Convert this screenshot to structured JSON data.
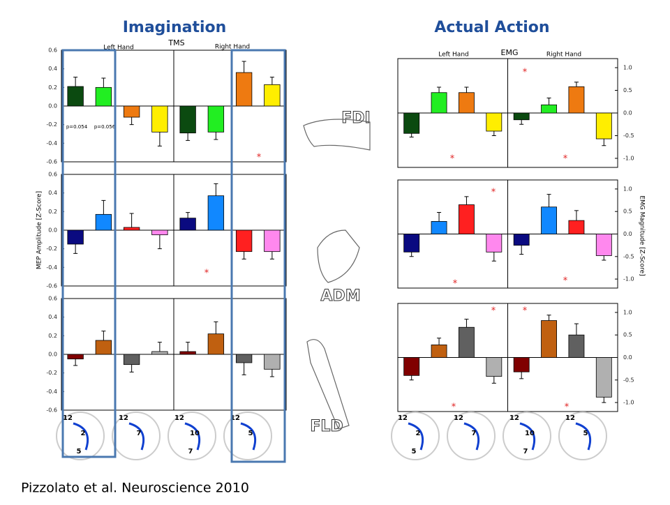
{
  "labels": {
    "left_title": "Imagination",
    "right_title": "Actual Action",
    "tms": "TMS",
    "emg": "EMG",
    "left_hand": "Left Hand",
    "right_hand": "Right Hand",
    "left_y_title": "MEP Amplitude [Z-Score]",
    "right_y_title": "EMG Magnitude [Z-Score]",
    "muscles": [
      "FDI",
      "ADM",
      "FLD"
    ],
    "citation": "Pizzolato et al. Neuroscience 2010"
  },
  "clocks": [
    [
      "12",
      "2",
      "5"
    ],
    [
      "12",
      "7"
    ],
    [
      "12",
      "10",
      "7"
    ],
    [
      "12",
      "5"
    ],
    [
      "12",
      "2",
      "5"
    ],
    [
      "12",
      "7"
    ],
    [
      "12",
      "10",
      "7"
    ],
    [
      "12",
      "5"
    ]
  ],
  "chart_data": [
    {
      "type": "bar",
      "values": [
        0.21,
        0.2,
        -0.12,
        -0.28,
        -0.29,
        -0.28,
        0.36,
        0.23
      ],
      "errors": [
        0.1,
        0.1,
        0.08,
        0.15,
        0.08,
        0.08,
        0.12,
        0.08
      ],
      "colors": [
        "#0b4a10",
        "#22ee22",
        "#ee7a11",
        "#ffee00",
        "#0b4a10",
        "#22ee22",
        "#ee7a11",
        "#ffee00"
      ],
      "ylim": [
        -0.6,
        0.6
      ],
      "yticks": [
        -0.6,
        -0.4,
        -0.2,
        {
          "value": 0,
          "label": "0.0"
        },
        0.2,
        0.4,
        0.6
      ],
      "annotations": [
        "p=0.054",
        "p=0.056",
        "*"
      ]
    },
    {
      "type": "bar",
      "values": [
        -0.15,
        0.17,
        0.03,
        -0.05,
        0.13,
        0.37,
        -0.23,
        -0.23
      ],
      "errors": [
        0.1,
        0.15,
        0.15,
        0.15,
        0.06,
        0.13,
        0.08,
        0.08
      ],
      "colors": [
        "#0a0a80",
        "#1188ff",
        "#ff2020",
        "#ff88ee",
        "#0a0a80",
        "#1188ff",
        "#ff2020",
        "#ff88ee"
      ],
      "ylim": [
        -0.6,
        0.6
      ],
      "yticks": [
        -0.6,
        -0.4,
        -0.2,
        {
          "value": 0,
          "label": "0.0"
        },
        0.2,
        0.4,
        0.6
      ],
      "annotations": [
        "*"
      ]
    },
    {
      "type": "bar",
      "values": [
        -0.05,
        0.15,
        -0.11,
        0.03,
        0.03,
        0.22,
        -0.09,
        -0.16
      ],
      "errors": [
        0.07,
        0.1,
        0.08,
        0.1,
        0.1,
        0.13,
        0.13,
        0.08
      ],
      "colors": [
        "#800000",
        "#c06010",
        "#606060",
        "#b0b0b0",
        "#800000",
        "#c06010",
        "#606060",
        "#b0b0b0"
      ],
      "ylim": [
        -0.6,
        0.6
      ],
      "yticks": [
        -0.6,
        -0.4,
        -0.2,
        {
          "value": 0,
          "label": "0.0"
        },
        0.2,
        0.4,
        0.6
      ],
      "annotations": []
    },
    {
      "type": "bar",
      "values": [
        -0.45,
        0.45,
        0.45,
        -0.4,
        -0.15,
        0.18,
        0.58,
        -0.57
      ],
      "errors": [
        0.08,
        0.12,
        0.12,
        0.1,
        0.1,
        0.15,
        0.1,
        0.15
      ],
      "colors": [
        "#0b4a10",
        "#22ee22",
        "#ee7a11",
        "#ffee00",
        "#0b4a10",
        "#22ee22",
        "#ee7a11",
        "#ffee00"
      ],
      "ylim": [
        -1.2,
        1.2
      ],
      "yticks": [
        {
          "value": -1,
          "label": "-1.0"
        },
        -0.5,
        {
          "value": 0,
          "label": "0.0"
        },
        0.5,
        {
          "value": 1,
          "label": "1.0"
        }
      ],
      "annotations": [
        "*",
        "*",
        "*"
      ]
    },
    {
      "type": "bar",
      "values": [
        -0.4,
        0.28,
        0.65,
        -0.4,
        -0.25,
        0.6,
        0.3,
        -0.48
      ],
      "errors": [
        0.1,
        0.2,
        0.18,
        0.2,
        0.2,
        0.28,
        0.22,
        0.1
      ],
      "colors": [
        "#0a0a80",
        "#1188ff",
        "#ff2020",
        "#ff88ee",
        "#0a0a80",
        "#1188ff",
        "#ff2020",
        "#ff88ee"
      ],
      "ylim": [
        -1.2,
        1.2
      ],
      "yticks": [
        {
          "value": -1,
          "label": "-1.0"
        },
        -0.5,
        {
          "value": 0,
          "label": "0.0"
        },
        0.5,
        {
          "value": 1,
          "label": "1.0"
        }
      ],
      "annotations": [
        "*",
        "*",
        "*"
      ]
    },
    {
      "type": "bar",
      "values": [
        -0.4,
        0.28,
        0.67,
        -0.42,
        -0.32,
        0.82,
        0.5,
        -0.88
      ],
      "errors": [
        0.1,
        0.15,
        0.18,
        0.15,
        0.15,
        0.12,
        0.25,
        0.12
      ],
      "colors": [
        "#800000",
        "#c06010",
        "#606060",
        "#b0b0b0",
        "#800000",
        "#c06010",
        "#606060",
        "#b0b0b0"
      ],
      "ylim": [
        -1.2,
        1.2
      ],
      "yticks": [
        {
          "value": -1,
          "label": "-1.0"
        },
        -0.5,
        {
          "value": 0,
          "label": "0.0"
        },
        0.5,
        {
          "value": 1,
          "label": "1.0"
        }
      ],
      "annotations": [
        "*",
        "*",
        "*",
        "*"
      ]
    }
  ]
}
